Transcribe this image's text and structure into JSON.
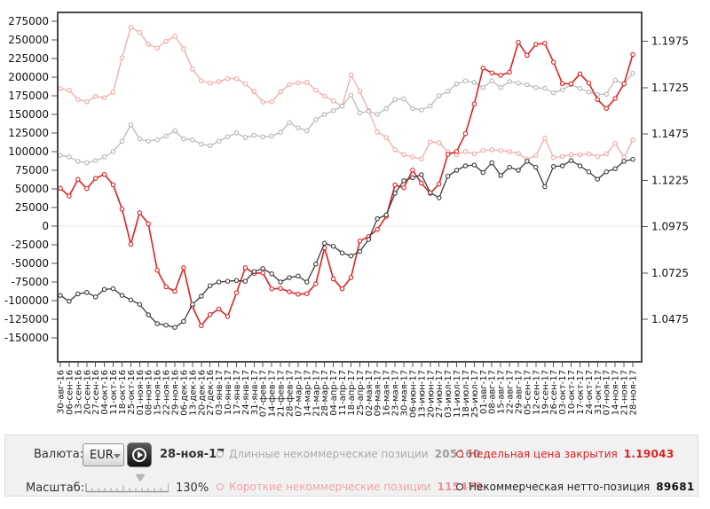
{
  "controls": {
    "currency_label": "Валюта:",
    "currency_value": "EUR",
    "date": "28-ноя-17",
    "scale_label": "Масштаб:",
    "scale_value": "130%"
  },
  "legend": [
    {
      "label": "Длинные некоммерческие позиции",
      "value": "205160",
      "color": "#ababab",
      "value_color": "#9d9d9d"
    },
    {
      "label": "Короткие некоммерческие позиции",
      "value": "115479",
      "color": "#f3a4a4",
      "value_color": "#ef9292"
    },
    {
      "label": "Недельная цена закрытия",
      "value": "1.19043",
      "color": "#dd2222",
      "value_color": "#dd2222"
    },
    {
      "label": "Некоммерческая нетто-позиция",
      "value": "89681",
      "color": "#262626",
      "value_color": "#111111"
    }
  ],
  "chart_data": {
    "type": "line",
    "title": "",
    "grid": "zero-line-only",
    "left_axis": {
      "max": 275000,
      "min": -150000,
      "step": 25000
    },
    "right_axis": {
      "max": 1.1975,
      "min": 1.0475,
      "step": 0.025,
      "decimals": 4
    },
    "x_labels": [
      "30-авг-16",
      "06-сен-16",
      "13-сен-16",
      "20-сен-16",
      "27-сен-16",
      "04-окт-16",
      "11-окт-16",
      "18-окт-16",
      "25-окт-16",
      "01-ноя-16",
      "08-ноя-16",
      "15-ноя-16",
      "22-ноя-16",
      "29-ноя-16",
      "06-дек-16",
      "13-дек-16",
      "20-дек-16",
      "27-дек-16",
      "03-янв-17",
      "10-янв-17",
      "17-янв-17",
      "24-янв-17",
      "31-янв-17",
      "07-фев-17",
      "14-фев-17",
      "21-фев-17",
      "28-фев-17",
      "07-мар-17",
      "14-мар-17",
      "21-мар-17",
      "28-мар-17",
      "04-апр-17",
      "11-апр-17",
      "18-апр-17",
      "25-апр-17",
      "02-мая-17",
      "09-мая-17",
      "16-мая-17",
      "23-мая-17",
      "30-мая-17",
      "06-июн-17",
      "13-июн-17",
      "20-июн-17",
      "27-июн-17",
      "03-июл-17",
      "11-июл-17",
      "18-июл-17",
      "25-июл-17",
      "01-авг-17",
      "08-авг-17",
      "15-авг-17",
      "22-авг-17",
      "29-авг-17",
      "05-сен-17",
      "12-сен-17",
      "19-сен-17",
      "26-сен-17",
      "03-окт-17",
      "10-окт-17",
      "17-окт-17",
      "24-окт-17",
      "31-окт-17",
      "07-ноя-17",
      "14-ноя-17",
      "21-ноя-17",
      "28-ноя-17"
    ],
    "series": [
      {
        "name": "Короткие некоммерческие позиции",
        "axis": "left",
        "color": "#f3a4a4",
        "values": [
          184500,
          182500,
          170000,
          167000,
          174000,
          172500,
          180000,
          226000,
          267000,
          260000,
          244000,
          239000,
          248000,
          255000,
          238000,
          211000,
          195000,
          192000,
          194000,
          198000,
          198000,
          191000,
          180500,
          166500,
          167000,
          180500,
          190000,
          192500,
          193000,
          182500,
          174500,
          168000,
          161000,
          203000,
          181000,
          155000,
          126500,
          119000,
          102500,
          96000,
          93000,
          90000,
          113000,
          112000,
          100000,
          96000,
          100000,
          97000,
          101500,
          102500,
          101500,
          100000,
          97500,
          89500,
          95000,
          118000,
          92000,
          93500,
          96000,
          96000,
          97000,
          93500,
          97000,
          111000,
          92500,
          115479
        ]
      },
      {
        "name": "Длинные некоммерческие позиции",
        "axis": "left",
        "color": "#b5b5b5",
        "values": [
          95000,
          93000,
          87000,
          85000,
          88000,
          93000,
          100000,
          114000,
          136000,
          117000,
          114000,
          116000,
          121000,
          128000,
          117000,
          116000,
          110000,
          108000,
          114000,
          120000,
          125000,
          119000,
          122000,
          120000,
          121000,
          126000,
          139000,
          132000,
          128000,
          143000,
          150000,
          155000,
          161000,
          176000,
          152000,
          154000,
          150000,
          158000,
          170000,
          171000,
          158000,
          156000,
          161000,
          175000,
          181000,
          191000,
          195000,
          193000,
          186000,
          195000,
          186000,
          194000,
          192000,
          190000,
          186000,
          185000,
          179000,
          183000,
          190000,
          185000,
          180000,
          177000,
          177000,
          196000,
          191000,
          205160
        ]
      },
      {
        "name": "Недельная цена закрытия",
        "axis": "right",
        "color": "#dd2222",
        "values": [
          1.1182,
          1.114,
          1.123,
          1.118,
          1.1236,
          1.1257,
          1.1201,
          1.107,
          1.088,
          1.105,
          1.099,
          1.074,
          1.065,
          1.0626,
          1.0753,
          1.0545,
          1.044,
          1.05,
          1.053,
          1.049,
          1.0618,
          1.0753,
          1.0723,
          1.0725,
          1.0639,
          1.0641,
          1.0623,
          1.061,
          1.0613,
          1.0666,
          1.086,
          1.0693,
          1.0639,
          1.07,
          1.0897,
          1.0921,
          1.096,
          1.103,
          1.12,
          1.1185,
          1.128,
          1.121,
          1.1155,
          1.1205,
          1.1365,
          1.1381,
          1.1477,
          1.1637,
          1.1831,
          1.1805,
          1.1792,
          1.1809,
          1.197,
          1.19,
          1.1959,
          1.1965,
          1.1863,
          1.1747,
          1.1746,
          1.18,
          1.175,
          1.1661,
          1.1613,
          1.1667,
          1.1746,
          1.19043
        ]
      },
      {
        "name": "Некоммерческая нетто-позиция",
        "axis": "left",
        "color": "#3c3c3c",
        "values": [
          -93000,
          -101000,
          -91000,
          -89000,
          -95000,
          -85000,
          -84000,
          -93000,
          -99000,
          -105000,
          -119000,
          -131000,
          -133000,
          -136000,
          -128000,
          -105000,
          -94000,
          -80000,
          -75000,
          -74000,
          -73000,
          -74000,
          -61000,
          -57000,
          -64000,
          -75000,
          -69000,
          -67000,
          -75000,
          -51000,
          -23000,
          -27000,
          -36000,
          -40000,
          -34000,
          -18000,
          10000,
          15000,
          44000,
          61000,
          65000,
          69000,
          45000,
          38000,
          67000,
          75000,
          81000,
          82000,
          72000,
          85000,
          68000,
          79000,
          75000,
          87000,
          79000,
          53000,
          80000,
          81000,
          88000,
          81000,
          73000,
          63000,
          73000,
          77000,
          87000,
          89681
        ]
      }
    ]
  }
}
